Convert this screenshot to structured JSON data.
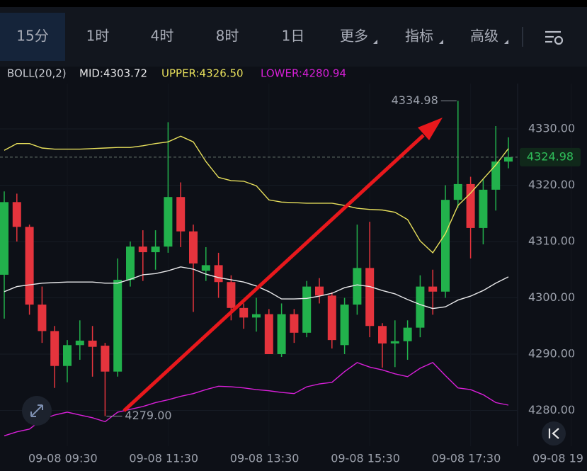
{
  "tabs": [
    "15分",
    "1时",
    "4时",
    "8时",
    "1日",
    "更多",
    "指标",
    "高级"
  ],
  "selected_tab_index": 0,
  "indicator": {
    "name": "BOLL(20,2)",
    "mid": "MID:4303.72",
    "upper": "UPPER:4326.50",
    "lower": "LOWER:4280.94"
  },
  "chart_data": {
    "type": "candlestick",
    "categories": [
      null,
      null,
      null,
      null,
      null,
      "09-08 09:30",
      null,
      null,
      null,
      null,
      null,
      null,
      null,
      "09-08 11:30",
      null,
      null,
      null,
      null,
      null,
      null,
      null,
      "09-08 13:30",
      null,
      null,
      null,
      null,
      null,
      null,
      null,
      "09-08 15:30",
      null,
      null,
      null,
      null,
      null,
      null,
      null,
      "09-08 17:30",
      null,
      null,
      null,
      null,
      null,
      null,
      null,
      "09-08 19"
    ],
    "open": [
      4304.1,
      4317.0,
      4312.6,
      4298.8,
      4294.1,
      4287.9,
      4291.6,
      4292.4,
      4291.5,
      4286.9,
      4303.2,
      4309.1,
      4308.1,
      4309.1,
      4317.9,
      4311.8,
      4304.8,
      4305.8,
      4302.8,
      4298.2,
      4296.5,
      4297.1,
      4290.0,
      4297.1,
      4293.8,
      4302.0,
      4300.4,
      4291.6,
      4298.8,
      4305.3,
      4295.0,
      4291.9,
      4292.3,
      4294.7,
      4302.0,
      4301.1,
      4317.4,
      4320.2,
      4312.4,
      4319.2,
      4324.2,
      null,
      null,
      null,
      null,
      null
    ],
    "high": [
      4318.9,
      4318.5,
      4313.0,
      4302.0,
      4295.0,
      4292.5,
      4296.0,
      4295.0,
      4292.0,
      4307.0,
      4310.0,
      4312.0,
      4312.0,
      4331.2,
      4320.5,
      4313.0,
      4309.0,
      4308.0,
      4304.0,
      4299.0,
      4300.0,
      4298.0,
      4299.0,
      4298.0,
      4303.0,
      4303.5,
      4301.0,
      4300.0,
      4313.0,
      4313.5,
      4295.5,
      4296.0,
      4296.0,
      4304.0,
      4305.0,
      4320.0,
      4334.98,
      4321.5,
      4321.0,
      4330.5,
      4328.5,
      null,
      null,
      null,
      null,
      null
    ],
    "low": [
      4296.3,
      4310.0,
      4297.0,
      4292.0,
      4284.0,
      4285.0,
      4289.0,
      4286.0,
      4279.0,
      4286.0,
      4302.0,
      4303.0,
      4305.0,
      4308.0,
      4309.0,
      4297.5,
      4303.0,
      4300.0,
      4296.0,
      4294.5,
      4294.0,
      4290.0,
      4289.5,
      4292.0,
      4293.0,
      4299.0,
      4291.0,
      4290.0,
      4297.0,
      4293.0,
      4287.6,
      4287.7,
      4289.0,
      4293.0,
      4297.0,
      4300.0,
      4316.0,
      4307.0,
      4309.5,
      4315.5,
      4323.0,
      null,
      null,
      null,
      null,
      null
    ],
    "close": [
      4317.0,
      4312.6,
      4298.8,
      4294.1,
      4287.9,
      4291.6,
      4292.4,
      4291.3,
      4286.9,
      4303.2,
      4309.1,
      4308.1,
      4309.1,
      4317.9,
      4311.8,
      4306.1,
      4305.8,
      4302.8,
      4298.2,
      4296.5,
      4297.1,
      4290.0,
      4297.1,
      4293.8,
      4302.0,
      4300.4,
      4292.5,
      4298.8,
      4305.3,
      4295.0,
      4291.9,
      4292.3,
      4294.7,
      4302.0,
      4301.1,
      4317.4,
      4320.2,
      4312.4,
      4319.2,
      4324.2,
      4324.98,
      null,
      null,
      null,
      null,
      null
    ],
    "up_color": "#22b14c",
    "down_color": "#e5343d",
    "upper": {
      "color": "#e8e05c",
      "values": [
        4326.2,
        4327.4,
        4327.4,
        4326.6,
        4326.4,
        4326.4,
        4326.4,
        4326.5,
        4326.6,
        4326.7,
        4326.7,
        4327.0,
        4327.4,
        4327.7,
        4328.7,
        4327.7,
        4324.2,
        4321.4,
        4320.8,
        4320.7,
        4319.9,
        4317.4,
        4317.0,
        4316.9,
        4316.8,
        4316.8,
        4316.8,
        4316.4,
        4315.9,
        4315.7,
        4315.6,
        4315.2,
        4313.9,
        4310.1,
        4308.0,
        4311.4,
        4316.4,
        4318.6,
        4321.1,
        4323.6,
        4326.5,
        null,
        null,
        null,
        null,
        null
      ]
    },
    "mid": {
      "color": "#e8e8ea",
      "values": [
        4301.1,
        4302.0,
        4302.3,
        4302.6,
        4302.7,
        4302.8,
        4302.8,
        4302.8,
        4302.6,
        4302.6,
        4303.3,
        4304.1,
        4304.3,
        4304.8,
        4305.5,
        4305.1,
        4304.2,
        4303.6,
        4303.2,
        4302.8,
        4302.1,
        4301.1,
        4299.8,
        4299.8,
        4299.9,
        4300.3,
        4300.8,
        4301.8,
        4302.3,
        4302.0,
        4301.3,
        4300.7,
        4299.7,
        4298.8,
        4298.1,
        4298.4,
        4299.6,
        4300.3,
        4301.3,
        4302.6,
        4303.72,
        null,
        null,
        null,
        null,
        null
      ]
    },
    "lower": {
      "color": "#d81fd8",
      "values": [
        4275.5,
        4276.2,
        4276.7,
        4278.4,
        4279.2,
        4279.7,
        4279.2,
        4278.7,
        4278.0,
        4279.7,
        4280.2,
        4280.7,
        4281.4,
        4281.9,
        4282.5,
        4283.0,
        4283.7,
        4284.3,
        4284.2,
        4284.0,
        4283.7,
        4283.5,
        4283.2,
        4283.0,
        4284.2,
        4284.7,
        4285.0,
        4286.9,
        4288.5,
        4287.7,
        4287.2,
        4286.5,
        4286.0,
        4287.5,
        4288.5,
        4286.2,
        4284.0,
        4283.7,
        4282.8,
        4281.4,
        4280.94,
        null,
        null,
        null,
        null,
        null
      ]
    },
    "ylim": [
      4273.65,
      4340.94
    ],
    "yticks": [
      {
        "value": 4280,
        "label": "4280.00"
      },
      {
        "value": 4290,
        "label": "4290.00"
      },
      {
        "value": 4300,
        "label": "4300.00"
      },
      {
        "value": 4310,
        "label": "4310.00"
      },
      {
        "value": 4320,
        "label": "4320.00"
      },
      {
        "value": 4330,
        "label": "4330.00"
      }
    ],
    "grid": true,
    "high_label": "4334.98",
    "low_label": "4279.00",
    "last_label": "4324.98"
  }
}
